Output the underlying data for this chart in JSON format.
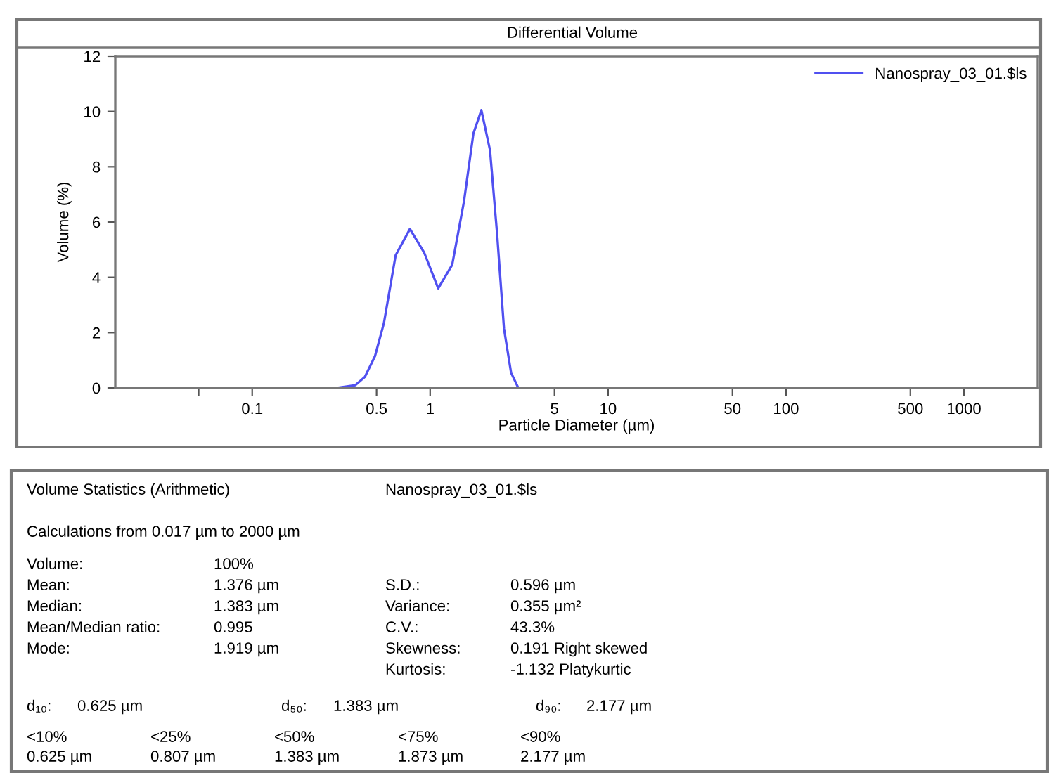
{
  "chart_data": [
    {
      "type": "line",
      "title": "Differential Volume",
      "xlabel": "Particle Diameter (µm)",
      "ylabel": "Volume (%)",
      "log": "x",
      "legend": "top right",
      "grid": false,
      "xlim": [
        0.017,
        2600
      ],
      "xticks": [
        {
          "value": 0.05,
          "label": null
        },
        0.1,
        0.5,
        1,
        5,
        10,
        50,
        100,
        500,
        1000
      ],
      "ylim": [
        0,
        12
      ],
      "yticks": [
        0,
        2,
        4,
        6,
        8,
        10,
        12
      ],
      "series": [
        {
          "name": "Nanospray_03_01.$ls",
          "color": "#5050f0",
          "x": [
            0.3,
            0.38,
            0.43,
            0.49,
            0.55,
            0.64,
            0.77,
            0.925,
            1.11,
            1.33,
            1.55,
            1.75,
            1.94,
            2.17,
            2.38,
            2.6,
            2.85,
            3.13
          ],
          "values": [
            0,
            0.1,
            0.4,
            1.15,
            2.35,
            4.8,
            5.75,
            4.9,
            3.6,
            4.45,
            6.75,
            9.2,
            10.05,
            8.6,
            5.55,
            2.15,
            0.55,
            0
          ]
        }
      ]
    },
    {
      "type": "other",
      "annotations": [
        "Volume Statistics (Arithmetic)",
        "Nanospray_03_01.$ls",
        "Calculations from 0.017 µm to 2000 µm",
        "Volume:",
        "100%",
        "Mean:",
        "1.376 µm",
        "S.D.:",
        "0.596 µm",
        "Median:",
        "1.383 µm",
        "Variance:",
        "0.355 µm²",
        "Mean/Median ratio:",
        "0.995",
        "C.V.:",
        "43.3%",
        "Mode:",
        "1.919 µm",
        "Skewness:",
        "0.191 Right skewed",
        "Kurtosis:",
        "-1.132 Platykurtic",
        "d₁₀:",
        "0.625 µm",
        "d₅₀:",
        "1.383 µm",
        "d₉₀:",
        "2.177 µm",
        "<10%",
        "<25%",
        "<50%",
        "<75%",
        "<90%",
        "0.625 µm",
        "0.807 µm",
        "1.383 µm",
        "1.873 µm",
        "2.177 µm"
      ]
    }
  ]
}
